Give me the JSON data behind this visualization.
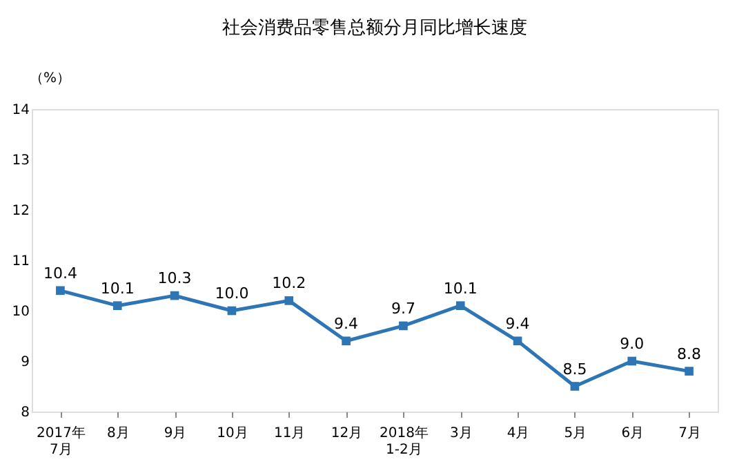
{
  "chart_data": {
    "type": "line",
    "title": "社会消费品零售总额分月同比增长速度",
    "ylabel": "（%）",
    "categories": [
      "2017年\n7月",
      "8月",
      "9月",
      "10月",
      "11月",
      "12月",
      "2018年\n1-2月",
      "3月",
      "4月",
      "5月",
      "6月",
      "7月"
    ],
    "series": [
      {
        "color": "#2e75b6",
        "values": [
          10.4,
          10.1,
          10.3,
          10.0,
          10.2,
          9.4,
          9.7,
          10.1,
          9.4,
          8.5,
          9.0,
          8.8
        ],
        "value_labels": [
          "10.4",
          "10.1",
          "10.3",
          "10.0",
          "10.2",
          "9.4",
          "9.7",
          "10.1",
          "9.4",
          "8.5",
          "9.0",
          "8.8"
        ]
      }
    ],
    "ylim": [
      8,
      14
    ],
    "yticks": [
      8,
      9,
      10,
      11,
      12,
      13,
      14
    ],
    "grid": false,
    "marker": "square",
    "line_style": "solid"
  }
}
